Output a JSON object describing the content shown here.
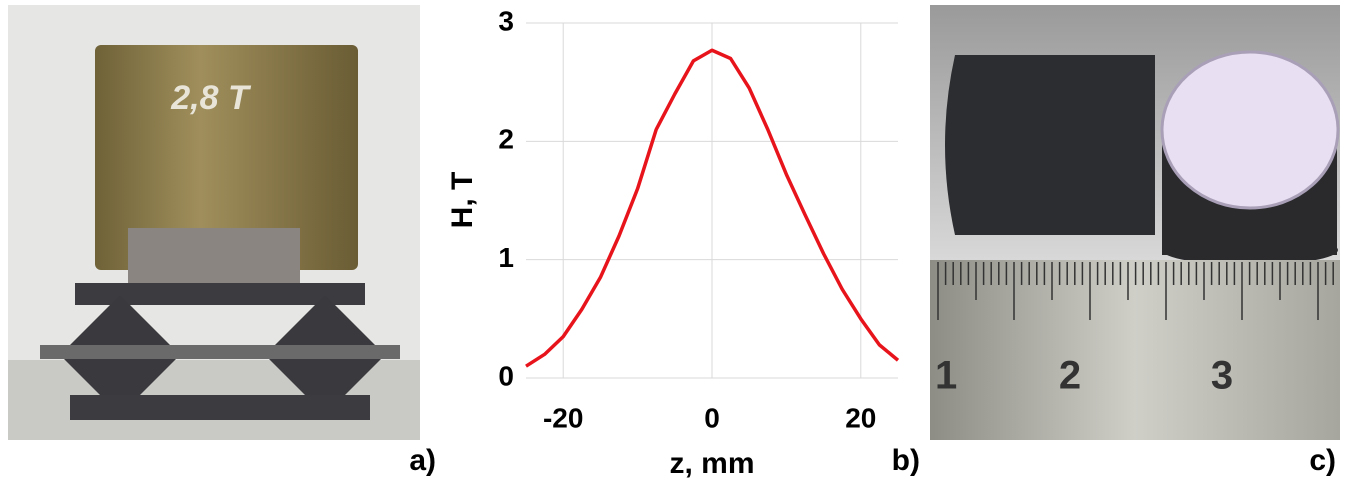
{
  "chart_data": {
    "type": "line",
    "xlabel": "z, mm",
    "ylabel": "H, T",
    "x": [
      -25,
      -22.5,
      -20,
      -17.5,
      -15,
      -12.5,
      -10,
      -7.5,
      -5,
      -2.5,
      0,
      2.5,
      5,
      7.5,
      10,
      12.5,
      15,
      17.5,
      20,
      22.5,
      25
    ],
    "series": [
      {
        "color": "#e8141c",
        "values": [
          0.1,
          0.2,
          0.35,
          0.58,
          0.85,
          1.2,
          1.6,
          2.1,
          2.4,
          2.68,
          2.77,
          2.7,
          2.45,
          2.1,
          1.72,
          1.38,
          1.05,
          0.75,
          0.5,
          0.28,
          0.15
        ]
      }
    ],
    "xlim": [
      -25,
      25
    ],
    "xticks": [
      -20,
      0,
      20
    ],
    "ylim": [
      0,
      3
    ],
    "yticks": [
      0,
      1,
      2,
      3
    ],
    "grid": true
  },
  "panels": {
    "a": "a)",
    "b": "b)",
    "c": "c)"
  },
  "photo_text": {
    "magnet": "2,8 T",
    "ruler": [
      "1",
      "2",
      "3"
    ]
  }
}
